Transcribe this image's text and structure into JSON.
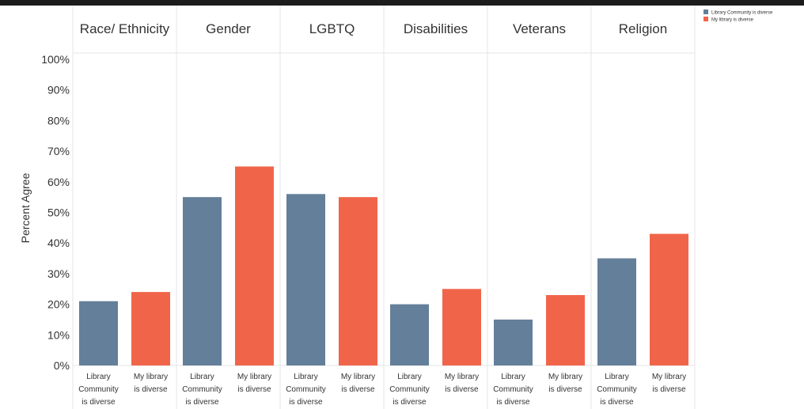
{
  "chart_data": {
    "type": "bar",
    "panels": [
      "Race/ Ethnicity",
      "Gender",
      "LGBTQ",
      "Disabilities",
      "Veterans",
      "Religion"
    ],
    "category_labels": [
      [
        "Library",
        "Community",
        "is diverse"
      ],
      [
        "My library",
        "is diverse"
      ]
    ],
    "series": [
      {
        "name": "Library Community is diverse",
        "color": "#647f99",
        "values": [
          21,
          55,
          56,
          20,
          15,
          35
        ]
      },
      {
        "name": "My library is diverse",
        "color": "#f0654a",
        "values": [
          24,
          65,
          55,
          25,
          23,
          43
        ]
      }
    ],
    "ylabel": "Percent Agree",
    "ylim": [
      0,
      100
    ],
    "yticks": [
      "0%",
      "10%",
      "20%",
      "30%",
      "40%",
      "50%",
      "60%",
      "70%",
      "80%",
      "90%",
      "100%"
    ],
    "grid": false,
    "legend": "top-right"
  }
}
